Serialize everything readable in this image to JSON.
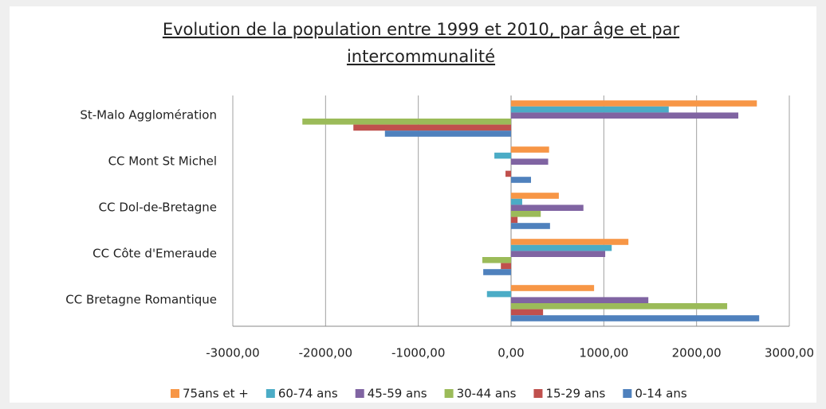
{
  "chart_data": {
    "type": "hbar",
    "title_lines": [
      "Evolution de la population entre 1999 et 2010, par âge et par",
      "intercommunalité"
    ],
    "categories": [
      "St-Malo Agglomération",
      "CC Mont St Michel",
      "CC Dol-de-Bretagne",
      "CC Côte d'Emeraude",
      "CC Bretagne Romantique"
    ],
    "series": [
      {
        "name": "75ans et +",
        "color": "#f79646",
        "values": [
          2650,
          410,
          515,
          1265,
          895
        ]
      },
      {
        "name": "60-74 ans",
        "color": "#4bacc6",
        "values": [
          1700,
          -180,
          120,
          1085,
          -260
        ]
      },
      {
        "name": "45-59 ans",
        "color": "#8064a2",
        "values": [
          2450,
          400,
          780,
          1015,
          1480
        ]
      },
      {
        "name": "30-44 ans",
        "color": "#9bbb59",
        "values": [
          -2250,
          0,
          320,
          -310,
          2330
        ]
      },
      {
        "name": "15-29 ans",
        "color": "#c0504d",
        "values": [
          -1700,
          -60,
          70,
          -110,
          345
        ]
      },
      {
        "name": "0-14 ans",
        "color": "#4f81bd",
        "values": [
          -1360,
          215,
          420,
          -300,
          2675
        ]
      }
    ],
    "xlim": [
      -3000,
      3000
    ],
    "xticks": [
      {
        "value": -3000,
        "label": "-3000,00"
      },
      {
        "value": -2000,
        "label": "-2000,00"
      },
      {
        "value": -1000,
        "label": "-1000,00"
      },
      {
        "value": 0,
        "label": "0,00"
      },
      {
        "value": 1000,
        "label": "1000,00"
      },
      {
        "value": 2000,
        "label": "2000,00"
      },
      {
        "value": 3000,
        "label": "3000,00"
      }
    ],
    "grid": true,
    "legend": "bottom"
  }
}
